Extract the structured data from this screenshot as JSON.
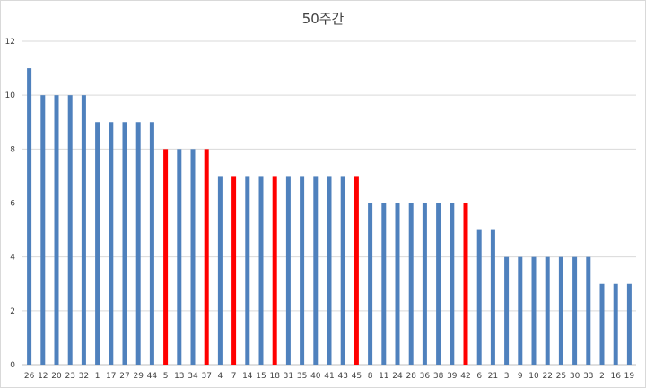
{
  "chart_data": {
    "type": "bar",
    "title": "50주간",
    "xlabel": "",
    "ylabel": "",
    "ylim": [
      0,
      12
    ],
    "yticks": [
      0,
      2,
      4,
      6,
      8,
      10,
      12
    ],
    "grid": true,
    "legend": "none",
    "colors": {
      "default": "#4f81bd",
      "highlight": "#ff0000",
      "grid": "#d9d9d9",
      "axis": "#bfbfbf",
      "text": "#404040"
    },
    "categories": [
      "26",
      "12",
      "20",
      "23",
      "32",
      "1",
      "17",
      "27",
      "29",
      "44",
      "5",
      "13",
      "34",
      "37",
      "4",
      "7",
      "14",
      "15",
      "18",
      "31",
      "35",
      "40",
      "41",
      "43",
      "45",
      "8",
      "11",
      "24",
      "28",
      "36",
      "38",
      "39",
      "42",
      "6",
      "21",
      "3",
      "9",
      "10",
      "22",
      "25",
      "30",
      "33",
      "2",
      "16",
      "19"
    ],
    "values": [
      11,
      10,
      10,
      10,
      10,
      9,
      9,
      9,
      9,
      9,
      8,
      8,
      8,
      8,
      7,
      7,
      7,
      7,
      7,
      7,
      7,
      7,
      7,
      7,
      7,
      6,
      6,
      6,
      6,
      6,
      6,
      6,
      6,
      5,
      5,
      4,
      4,
      4,
      4,
      4,
      4,
      4,
      3,
      3,
      3
    ],
    "highlighted": [
      "5",
      "37",
      "7",
      "18",
      "45",
      "42"
    ]
  }
}
